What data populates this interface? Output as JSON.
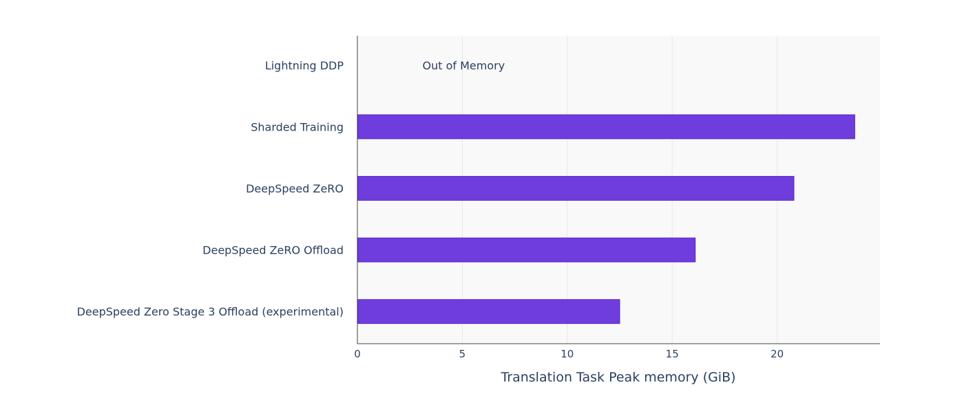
{
  "chart_data": {
    "type": "bar",
    "orientation": "horizontal",
    "categories": [
      "Lightning DDP",
      "Sharded Training",
      "DeepSpeed ZeRO",
      "DeepSpeed ZeRO Offload",
      "DeepSpeed Zero Stage 3 Offload (experimental)"
    ],
    "values": [
      null,
      23.7,
      20.8,
      16.1,
      12.5
    ],
    "xlabel": "Translation Task Peak memory (GiB)",
    "ylabel": "",
    "xlim": [
      0,
      24.9
    ],
    "xticks": [
      0,
      5,
      10,
      15,
      20
    ],
    "grid": true,
    "annotations": [
      {
        "category": "Lightning DDP",
        "text": "Out of Memory",
        "x": 3.1
      }
    ],
    "bar_color": "#6f3cde",
    "bar_edge_color": "#5b2bc4",
    "plot_bg": "#f9f9f9",
    "grid_color": "#e6e6e6",
    "text_color": "#2a3f5f"
  }
}
